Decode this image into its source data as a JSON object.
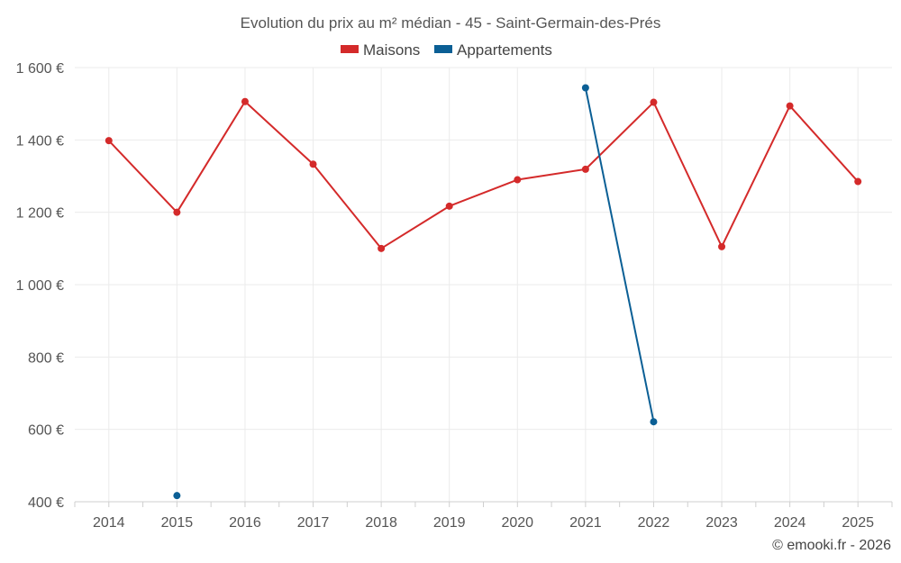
{
  "chart_data": {
    "type": "line",
    "title": "Evolution du prix au m² médian - 45 - Saint-Germain-des-Prés",
    "categories": [
      "2014",
      "2015",
      "2016",
      "2017",
      "2018",
      "2019",
      "2020",
      "2021",
      "2022",
      "2023",
      "2024",
      "2025"
    ],
    "ylim": [
      400,
      1600
    ],
    "yticks": [
      400,
      600,
      800,
      1000,
      1200,
      1400,
      1600
    ],
    "ytick_labels": [
      "400 €",
      "600 €",
      "800 €",
      "1 000 €",
      "1 200 €",
      "1 400 €",
      "1 600 €"
    ],
    "grid": true,
    "legend_position": "top-center",
    "series": [
      {
        "name": "Maisons",
        "color": "#d42a2a",
        "values": [
          1398,
          1200,
          1506,
          1333,
          1100,
          1217,
          1290,
          1319,
          1504,
          1105,
          1494,
          1285
        ]
      },
      {
        "name": "Appartements",
        "color": "#0b5f95",
        "values": [
          null,
          417,
          null,
          null,
          null,
          null,
          null,
          1544,
          621,
          null,
          null,
          null
        ]
      }
    ]
  },
  "credit": "© emooki.fr - 2026"
}
